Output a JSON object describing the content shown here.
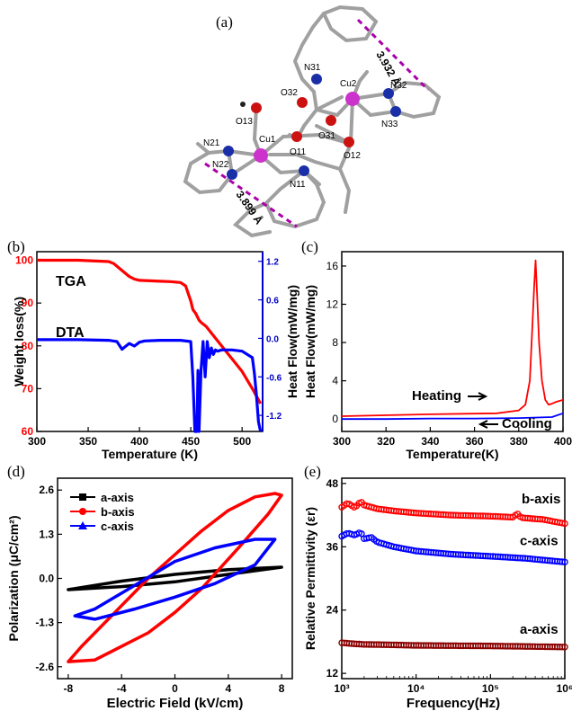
{
  "figure": {
    "panels": {
      "a": {
        "label": "(a)"
      },
      "b": {
        "label": "(b)"
      },
      "c": {
        "label": "(c)"
      },
      "d": {
        "label": "(d)"
      },
      "e": {
        "label": "(e)"
      }
    },
    "molecule": {
      "atoms": [
        "N31",
        "Cu2",
        "N32",
        "N33",
        "O32",
        "O31",
        "O13",
        "H",
        "Cu1",
        "O11",
        "O12",
        "N21",
        "N22",
        "N11"
      ],
      "distances": [
        "3.932 Å",
        "3.899 Å"
      ]
    }
  },
  "chart_data": [
    {
      "id": "b",
      "type": "line",
      "xlabel": "Temperature (K)",
      "ylabel": "Weight loss(%)",
      "y2label": "Heat Flow(mW/mg)",
      "xlim": [
        300,
        520
      ],
      "ylim": [
        60,
        102
      ],
      "y2lim": [
        -1.45,
        1.35
      ],
      "xticks": [
        300,
        350,
        400,
        450,
        500
      ],
      "yticks": [
        60,
        70,
        80,
        90,
        100
      ],
      "y2ticks": [
        "-1.2",
        "-0.6",
        "0.0",
        "0.6",
        "1.2"
      ],
      "colors": {
        "TGA": "#ff0000",
        "DTA": "#0000ff",
        "y2axis": "#0000cc"
      },
      "annotations": [
        "TGA",
        "DTA"
      ],
      "series": [
        {
          "name": "TGA",
          "axis": "left",
          "x": [
            300,
            340,
            370,
            375,
            380,
            385,
            390,
            395,
            400,
            410,
            420,
            430,
            440,
            445,
            450,
            452,
            455,
            458,
            460,
            465,
            470,
            475,
            480,
            490,
            500,
            510,
            518
          ],
          "y": [
            100,
            100,
            99.7,
            99.2,
            98.2,
            97.2,
            96.2,
            95.6,
            95.3,
            95.2,
            95.1,
            95.0,
            94.8,
            94.0,
            90.5,
            88.5,
            87.5,
            86.0,
            85.5,
            84.5,
            83.0,
            81.5,
            80.0,
            77.0,
            74.0,
            70.0,
            66.5
          ]
        },
        {
          "name": "DTA",
          "axis": "right",
          "x": [
            300,
            340,
            370,
            378,
            383,
            386,
            390,
            395,
            400,
            405,
            420,
            440,
            450,
            452,
            454,
            456,
            457,
            458,
            460,
            462,
            464,
            466,
            468,
            470,
            472,
            474,
            476,
            480,
            490,
            500,
            510,
            512,
            514,
            516,
            518
          ],
          "y": [
            -0.02,
            -0.02,
            -0.03,
            -0.05,
            -0.17,
            -0.13,
            -0.08,
            -0.12,
            -0.06,
            -0.04,
            -0.03,
            -0.03,
            -0.05,
            -0.6,
            -1.45,
            -1.45,
            -0.5,
            -1.45,
            -0.5,
            -0.05,
            -0.6,
            -0.05,
            -0.3,
            -0.15,
            -0.25,
            -0.18,
            -0.2,
            -0.18,
            -0.18,
            -0.2,
            -0.3,
            -0.55,
            -0.9,
            -1.3,
            -1.45
          ]
        }
      ]
    },
    {
      "id": "c",
      "type": "line",
      "xlabel": "Temperature(K)",
      "ylabel": "Heat Flow(mW/mg)",
      "xlim": [
        300,
        400
      ],
      "ylim": [
        -1.3,
        17.5
      ],
      "xticks": [
        300,
        320,
        340,
        360,
        380,
        400
      ],
      "yticks": [
        0,
        4,
        8,
        12,
        16
      ],
      "colors": {
        "Heating": "#ff0000",
        "Cooling": "#0000ff"
      },
      "annotations": [
        "Heating",
        "Cooling"
      ],
      "series": [
        {
          "name": "Heating",
          "x": [
            300,
            340,
            370,
            380,
            383,
            385,
            386,
            387,
            387.6,
            388.3,
            389.2,
            390.5,
            392,
            393.5,
            395,
            397,
            400
          ],
          "y": [
            0.3,
            0.5,
            0.6,
            0.9,
            1.5,
            4,
            9,
            14,
            16.6,
            13,
            8,
            4,
            2,
            1.5,
            1.6,
            1.8,
            2.0
          ]
        },
        {
          "name": "Cooling",
          "x": [
            300,
            320,
            340,
            360,
            380,
            395,
            400
          ],
          "y": [
            0.0,
            0.0,
            0.05,
            0.05,
            0.1,
            0.2,
            0.6
          ]
        }
      ]
    },
    {
      "id": "d",
      "type": "line",
      "xlabel": "Electric Field (kV/cm)",
      "ylabel": "Polarization (μC/cm²)",
      "xlim": [
        -8.8,
        8.8
      ],
      "ylim": [
        -2.95,
        2.95
      ],
      "xticks": [
        -8,
        -4,
        0,
        4,
        8
      ],
      "yticks": [
        "-2.6",
        "-1.3",
        "0.0",
        "1.3",
        "2.6"
      ],
      "legend": [
        "a-axis",
        "b-axis",
        "c-axis"
      ],
      "legend_placement": "top-left",
      "series": [
        {
          "name": "a-axis",
          "color": "#000000",
          "marker": "square",
          "x": [
            -8,
            -4,
            0,
            4,
            8,
            4,
            0,
            -4,
            -8
          ],
          "y": [
            -0.33,
            -0.24,
            -0.1,
            0.12,
            0.33,
            0.26,
            0.12,
            -0.08,
            -0.33
          ]
        },
        {
          "name": "b-axis",
          "color": "#ff0000",
          "marker": "circle",
          "x": [
            -8,
            -7,
            -5,
            -2,
            0,
            2,
            4,
            6,
            7.5,
            8,
            7,
            5,
            2,
            0,
            -2,
            -4,
            -6,
            -8
          ],
          "y": [
            -2.45,
            -2.0,
            -1.2,
            0.0,
            0.7,
            1.4,
            2.0,
            2.4,
            2.5,
            2.45,
            1.9,
            1.0,
            -0.3,
            -1.0,
            -1.6,
            -2.0,
            -2.4,
            -2.45
          ]
        },
        {
          "name": "c-axis",
          "color": "#0000ff",
          "marker": "triangle",
          "x": [
            -7.5,
            -6,
            -3,
            0,
            3,
            6,
            7.5,
            6,
            3,
            0,
            -3,
            -6,
            -7.5
          ],
          "y": [
            -1.1,
            -0.9,
            -0.2,
            0.5,
            0.9,
            1.15,
            1.15,
            0.4,
            -0.15,
            -0.55,
            -0.9,
            -1.2,
            -1.1
          ]
        }
      ]
    },
    {
      "id": "e",
      "type": "scatter",
      "xlabel": "Frequency(Hz)",
      "ylabel": "Relative Permittivity (εr)",
      "xscale": "log",
      "xlim": [
        1000,
        1000000
      ],
      "ylim": [
        11,
        49
      ],
      "xticks": [
        1000,
        10000,
        100000,
        1000000
      ],
      "xtick_labels": [
        "10³",
        "10⁴",
        "10⁵",
        "10⁶"
      ],
      "yticks": [
        12,
        24,
        36,
        48
      ],
      "series": [
        {
          "name": "b-axis",
          "color": "#ff0000",
          "x": [
            1000,
            1200,
            1500,
            1800,
            2000,
            3000,
            5000,
            10000,
            30000,
            100000,
            200000,
            230000,
            260000,
            500000,
            1000000
          ],
          "y": [
            43.5,
            44.3,
            43.4,
            44.6,
            43.9,
            43.2,
            42.8,
            42.4,
            42.0,
            41.8,
            41.6,
            42.3,
            41.5,
            41.2,
            40.4
          ]
        },
        {
          "name": "c-axis",
          "color": "#0000ff",
          "x": [
            1000,
            1200,
            1500,
            1800,
            2000,
            2500,
            3000,
            5000,
            10000,
            30000,
            100000,
            300000,
            1000000
          ],
          "y": [
            38.0,
            38.6,
            38.2,
            38.8,
            37.5,
            37.8,
            36.9,
            36.0,
            35.2,
            34.6,
            34.2,
            33.8,
            33.1
          ]
        },
        {
          "name": "a-axis",
          "color": "#8b0000",
          "x": [
            1000,
            1500,
            2000,
            5000,
            10000,
            100000,
            1000000
          ],
          "y": [
            17.8,
            17.6,
            17.5,
            17.4,
            17.3,
            17.2,
            17.0
          ]
        }
      ]
    }
  ]
}
